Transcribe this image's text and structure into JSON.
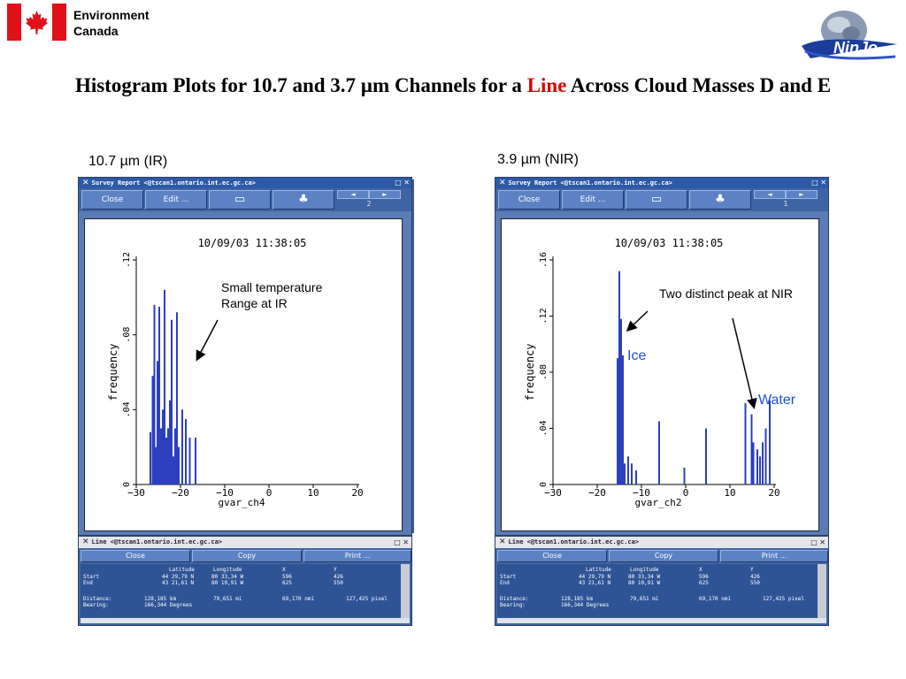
{
  "header": {
    "org_line1": "Environment",
    "org_line2": "Canada",
    "logo_text": "NinJo",
    "title_part1": "Histogram Plots for 10.7 and 3.7 µm Channels for a ",
    "title_highlight": "Line",
    "title_part2": " Across Cloud Masses D and E"
  },
  "left": {
    "label": "10.7 µm (IR)",
    "window_title": "Survey Report <@tscan1.ontario.int.ec.gc.ca>",
    "buttons": {
      "close": "Close",
      "edit": "Edit ..."
    },
    "page": "2",
    "annotation": "Small temperature Range at IR"
  },
  "right": {
    "label": "3.9 µm (NIR)",
    "window_title": "Survey Report <@tscan1.ontario.int.ec.gc.ca>",
    "buttons": {
      "close": "Close",
      "edit": "Edit ..."
    },
    "page": "1",
    "annotation": "Two distinct peak at NIR",
    "ice_label": "Ice",
    "water_label": "Water"
  },
  "line_window": {
    "title": "Line <@tscan1.ontario.int.ec.gc.ca>",
    "buttons": {
      "close": "Close",
      "copy": "Copy",
      "print": "Print ..."
    },
    "headers": {
      "lat": "Latitude",
      "lon": "Longitude",
      "x": "X",
      "y": "Y"
    },
    "start": {
      "label": "Start",
      "lat": "44 29,79 N",
      "lon": "80 33,34 W",
      "x": "596",
      "y": "426"
    },
    "end": {
      "label": "End",
      "lat": "43 21,61 N",
      "lon": "80 10,91 W",
      "x": "625",
      "y": "550"
    },
    "distance": {
      "label": "Distance:",
      "km": "128,185 km",
      "mi": "79,651 mi",
      "nmi": "69,170 nmi",
      "pixel": "127,425 pixel"
    },
    "bearing": {
      "label": "Bearing:",
      "value": "166,344 Degrees"
    }
  },
  "chart_data": [
    {
      "type": "bar",
      "title": "10/09/03 11:38:05",
      "xlabel": "gvar_ch4",
      "ylabel": "frequency",
      "xlim": [
        -30,
        20
      ],
      "ylim": [
        0,
        0.12
      ],
      "xticks": [
        "-30",
        "-20",
        "-10",
        "0",
        "10",
        "20"
      ],
      "yticks": [
        "0",
        ".04",
        ".08",
        ".12"
      ],
      "bar_color": "#2b3fbf",
      "x": [
        -26.8,
        -26.3,
        -25.9,
        -25.6,
        -25.2,
        -24.8,
        -24.4,
        -24.0,
        -23.6,
        -23.2,
        -22.8,
        -22.4,
        -22.0,
        -21.6,
        -21.2,
        -20.8,
        -20.4,
        -19.6,
        -18.8,
        -17.9,
        -16.6
      ],
      "values": [
        0.028,
        0.058,
        0.096,
        0.02,
        0.066,
        0.095,
        0.03,
        0.04,
        0.104,
        0.025,
        0.03,
        0.045,
        0.088,
        0.015,
        0.03,
        0.092,
        0.02,
        0.04,
        0.035,
        0.025,
        0.025
      ]
    },
    {
      "type": "bar",
      "title": "10/09/03 11:38:05",
      "xlabel": "gvar_ch2",
      "ylabel": "frequency",
      "xlim": [
        -30,
        20
      ],
      "ylim": [
        0,
        0.16
      ],
      "xticks": [
        "-30",
        "-20",
        "-10",
        "0",
        "10",
        "20"
      ],
      "yticks": [
        "0",
        ".04",
        ".08",
        ".12",
        ".16"
      ],
      "bar_color": "#2b3fbf",
      "x": [
        -15.4,
        -15.0,
        -14.6,
        -14.2,
        -13.8,
        -13.0,
        -12.2,
        -11.2,
        -6.0,
        -0.3,
        4.6,
        13.5,
        14.9,
        15.3,
        16.2,
        16.8,
        17.4,
        18.1,
        19.0
      ],
      "values": [
        0.09,
        0.152,
        0.118,
        0.092,
        0.015,
        0.02,
        0.015,
        0.01,
        0.045,
        0.012,
        0.04,
        0.058,
        0.05,
        0.03,
        0.025,
        0.02,
        0.03,
        0.04,
        0.06
      ]
    }
  ]
}
